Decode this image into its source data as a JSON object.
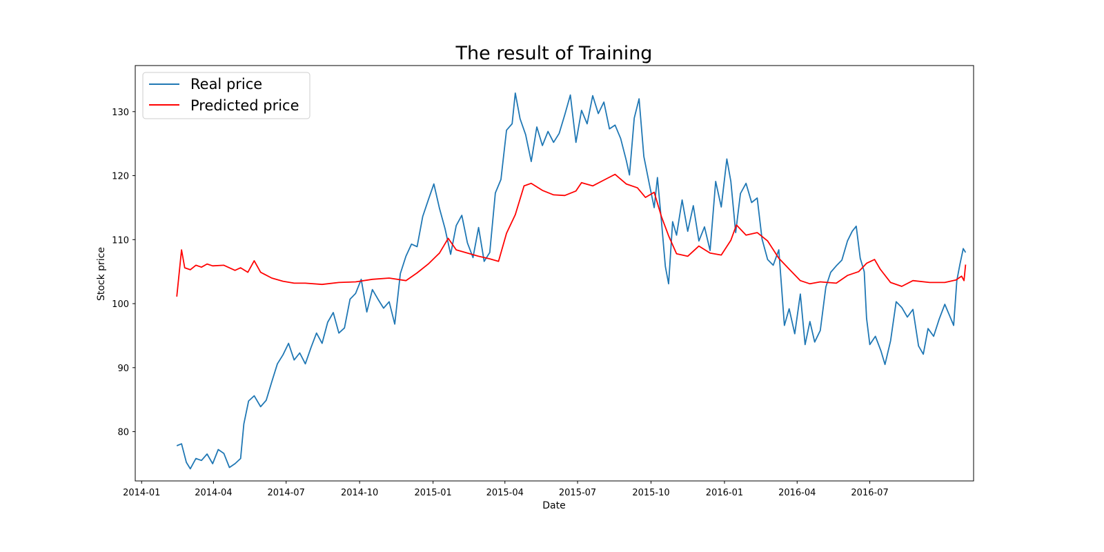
{
  "chart_data": {
    "type": "line",
    "title": "The result of Training",
    "xlabel": "Date",
    "ylabel": "Stock price",
    "x_ticks": [
      "2014-01",
      "2014-04",
      "2014-07",
      "2014-10",
      "2015-01",
      "2015-04",
      "2015-07",
      "2015-10",
      "2016-01",
      "2016-04",
      "2016-07"
    ],
    "y_ticks": [
      80,
      90,
      100,
      110,
      120,
      130
    ],
    "xlim": [
      "2013-12-24",
      "2016-11-08"
    ],
    "ylim": [
      72.3,
      137.2
    ],
    "legend_position": "top-left",
    "grid": false,
    "series": [
      {
        "name": "Real price",
        "color": "#1f77b4",
        "points": [
          [
            "2014-02-14",
            77.8
          ],
          [
            "2014-02-20",
            78.1
          ],
          [
            "2014-02-26",
            75.2
          ],
          [
            "2014-03-03",
            74.2
          ],
          [
            "2014-03-10",
            75.8
          ],
          [
            "2014-03-17",
            75.5
          ],
          [
            "2014-03-24",
            76.5
          ],
          [
            "2014-03-31",
            75.0
          ],
          [
            "2014-04-07",
            77.2
          ],
          [
            "2014-04-14",
            76.6
          ],
          [
            "2014-04-21",
            74.4
          ],
          [
            "2014-04-28",
            75.0
          ],
          [
            "2014-05-05",
            75.8
          ],
          [
            "2014-05-09",
            81.2
          ],
          [
            "2014-05-15",
            84.8
          ],
          [
            "2014-05-22",
            85.6
          ],
          [
            "2014-05-30",
            83.9
          ],
          [
            "2014-06-06",
            84.9
          ],
          [
            "2014-06-13",
            87.8
          ],
          [
            "2014-06-20",
            90.6
          ],
          [
            "2014-06-27",
            92.0
          ],
          [
            "2014-07-04",
            93.8
          ],
          [
            "2014-07-11",
            91.2
          ],
          [
            "2014-07-18",
            92.3
          ],
          [
            "2014-07-25",
            90.6
          ],
          [
            "2014-08-01",
            93.1
          ],
          [
            "2014-08-08",
            95.4
          ],
          [
            "2014-08-15",
            93.8
          ],
          [
            "2014-08-22",
            97.1
          ],
          [
            "2014-08-29",
            98.6
          ],
          [
            "2014-09-05",
            95.4
          ],
          [
            "2014-09-12",
            96.2
          ],
          [
            "2014-09-19",
            100.7
          ],
          [
            "2014-09-26",
            101.6
          ],
          [
            "2014-10-03",
            103.8
          ],
          [
            "2014-10-10",
            98.7
          ],
          [
            "2014-10-17",
            102.2
          ],
          [
            "2014-10-24",
            100.7
          ],
          [
            "2014-10-31",
            99.3
          ],
          [
            "2014-11-07",
            100.3
          ],
          [
            "2014-11-14",
            96.8
          ],
          [
            "2014-11-21",
            104.7
          ],
          [
            "2014-11-28",
            107.4
          ],
          [
            "2014-12-05",
            109.3
          ],
          [
            "2014-12-12",
            108.9
          ],
          [
            "2014-12-19",
            113.6
          ],
          [
            "2014-12-26",
            116.2
          ],
          [
            "2015-01-02",
            118.7
          ],
          [
            "2015-01-09",
            114.9
          ],
          [
            "2015-01-16",
            111.7
          ],
          [
            "2015-01-23",
            107.7
          ],
          [
            "2015-01-30",
            112.2
          ],
          [
            "2015-02-06",
            113.8
          ],
          [
            "2015-02-13",
            109.5
          ],
          [
            "2015-02-20",
            107.2
          ],
          [
            "2015-02-27",
            111.9
          ],
          [
            "2015-03-06",
            106.6
          ],
          [
            "2015-03-13",
            108.0
          ],
          [
            "2015-03-20",
            117.3
          ],
          [
            "2015-03-27",
            119.4
          ],
          [
            "2015-04-03",
            127.1
          ],
          [
            "2015-04-10",
            128.1
          ],
          [
            "2015-04-14",
            132.9
          ],
          [
            "2015-04-20",
            128.9
          ],
          [
            "2015-04-27",
            126.4
          ],
          [
            "2015-05-04",
            122.2
          ],
          [
            "2015-05-11",
            127.6
          ],
          [
            "2015-05-18",
            124.7
          ],
          [
            "2015-05-25",
            126.9
          ],
          [
            "2015-06-01",
            125.2
          ],
          [
            "2015-06-08",
            126.6
          ],
          [
            "2015-06-15",
            129.5
          ],
          [
            "2015-06-22",
            132.6
          ],
          [
            "2015-06-29",
            125.2
          ],
          [
            "2015-07-06",
            130.2
          ],
          [
            "2015-07-13",
            128.1
          ],
          [
            "2015-07-20",
            132.5
          ],
          [
            "2015-07-27",
            129.7
          ],
          [
            "2015-08-03",
            131.5
          ],
          [
            "2015-08-10",
            127.3
          ],
          [
            "2015-08-17",
            127.9
          ],
          [
            "2015-08-24",
            125.8
          ],
          [
            "2015-08-31",
            122.4
          ],
          [
            "2015-09-04",
            120.1
          ],
          [
            "2015-09-10",
            129.0
          ],
          [
            "2015-09-16",
            132.0
          ],
          [
            "2015-09-22",
            123.0
          ],
          [
            "2015-09-29",
            118.6
          ],
          [
            "2015-10-05",
            115.0
          ],
          [
            "2015-10-09",
            119.7
          ],
          [
            "2015-10-14",
            112.9
          ],
          [
            "2015-10-19",
            105.8
          ],
          [
            "2015-10-23",
            103.1
          ],
          [
            "2015-10-28",
            112.8
          ],
          [
            "2015-11-02",
            110.7
          ],
          [
            "2015-11-09",
            116.2
          ],
          [
            "2015-11-16",
            111.3
          ],
          [
            "2015-11-23",
            115.3
          ],
          [
            "2015-11-30",
            109.8
          ],
          [
            "2015-12-07",
            112.0
          ],
          [
            "2015-12-14",
            108.3
          ],
          [
            "2015-12-21",
            119.1
          ],
          [
            "2015-12-28",
            115.1
          ],
          [
            "2016-01-04",
            122.6
          ],
          [
            "2016-01-09",
            119.1
          ],
          [
            "2016-01-15",
            111.1
          ],
          [
            "2016-01-21",
            117.2
          ],
          [
            "2016-01-28",
            118.8
          ],
          [
            "2016-02-04",
            115.8
          ],
          [
            "2016-02-11",
            116.5
          ],
          [
            "2016-02-17",
            110.1
          ],
          [
            "2016-02-24",
            106.9
          ],
          [
            "2016-03-02",
            106.0
          ],
          [
            "2016-03-09",
            108.4
          ],
          [
            "2016-03-16",
            96.6
          ],
          [
            "2016-03-22",
            99.2
          ],
          [
            "2016-03-29",
            95.3
          ],
          [
            "2016-04-05",
            101.5
          ],
          [
            "2016-04-11",
            93.6
          ],
          [
            "2016-04-17",
            97.2
          ],
          [
            "2016-04-23",
            94.0
          ],
          [
            "2016-04-30",
            95.8
          ],
          [
            "2016-05-07",
            102.6
          ],
          [
            "2016-05-13",
            104.9
          ],
          [
            "2016-05-20",
            105.9
          ],
          [
            "2016-05-27",
            106.8
          ],
          [
            "2016-06-03",
            109.8
          ],
          [
            "2016-06-09",
            111.3
          ],
          [
            "2016-06-14",
            112.1
          ],
          [
            "2016-06-19",
            107.1
          ],
          [
            "2016-06-24",
            105.0
          ],
          [
            "2016-06-27",
            97.7
          ],
          [
            "2016-07-01",
            93.6
          ],
          [
            "2016-07-08",
            94.9
          ],
          [
            "2016-07-15",
            92.6
          ],
          [
            "2016-07-20",
            90.5
          ],
          [
            "2016-07-27",
            94.2
          ],
          [
            "2016-08-03",
            100.3
          ],
          [
            "2016-08-10",
            99.4
          ],
          [
            "2016-08-17",
            97.9
          ],
          [
            "2016-08-24",
            99.1
          ],
          [
            "2016-08-31",
            93.4
          ],
          [
            "2016-09-06",
            92.1
          ],
          [
            "2016-09-12",
            96.1
          ],
          [
            "2016-09-19",
            94.9
          ],
          [
            "2016-09-26",
            97.6
          ],
          [
            "2016-10-03",
            99.9
          ],
          [
            "2016-10-09",
            98.1
          ],
          [
            "2016-10-14",
            96.6
          ],
          [
            "2016-10-18",
            103.6
          ],
          [
            "2016-10-22",
            106.2
          ],
          [
            "2016-10-26",
            108.6
          ],
          [
            "2016-10-29",
            108.0
          ]
        ]
      },
      {
        "name": "Predicted price",
        "color": "#ff0000",
        "points": [
          [
            "2014-02-14",
            101.1
          ],
          [
            "2014-02-20",
            108.4
          ],
          [
            "2014-02-24",
            105.6
          ],
          [
            "2014-03-03",
            105.3
          ],
          [
            "2014-03-10",
            106.0
          ],
          [
            "2014-03-17",
            105.7
          ],
          [
            "2014-03-24",
            106.2
          ],
          [
            "2014-03-31",
            105.9
          ],
          [
            "2014-04-14",
            106.0
          ],
          [
            "2014-04-28",
            105.2
          ],
          [
            "2014-05-05",
            105.6
          ],
          [
            "2014-05-14",
            104.9
          ],
          [
            "2014-05-22",
            106.7
          ],
          [
            "2014-05-30",
            104.9
          ],
          [
            "2014-06-13",
            104.0
          ],
          [
            "2014-06-27",
            103.5
          ],
          [
            "2014-07-11",
            103.2
          ],
          [
            "2014-07-25",
            103.2
          ],
          [
            "2014-08-15",
            103.0
          ],
          [
            "2014-09-05",
            103.3
          ],
          [
            "2014-09-26",
            103.4
          ],
          [
            "2014-10-17",
            103.8
          ],
          [
            "2014-11-07",
            104.0
          ],
          [
            "2014-11-28",
            103.6
          ],
          [
            "2014-12-12",
            104.8
          ],
          [
            "2014-12-26",
            106.2
          ],
          [
            "2015-01-09",
            107.9
          ],
          [
            "2015-01-20",
            110.2
          ],
          [
            "2015-01-30",
            108.4
          ],
          [
            "2015-02-13",
            107.9
          ],
          [
            "2015-02-27",
            107.4
          ],
          [
            "2015-03-13",
            107.0
          ],
          [
            "2015-03-24",
            106.6
          ],
          [
            "2015-04-03",
            111.0
          ],
          [
            "2015-04-14",
            113.9
          ],
          [
            "2015-04-25",
            118.4
          ],
          [
            "2015-05-04",
            118.8
          ],
          [
            "2015-05-18",
            117.7
          ],
          [
            "2015-06-01",
            117.0
          ],
          [
            "2015-06-15",
            116.9
          ],
          [
            "2015-06-29",
            117.6
          ],
          [
            "2015-07-06",
            118.9
          ],
          [
            "2015-07-20",
            118.4
          ],
          [
            "2015-08-03",
            119.3
          ],
          [
            "2015-08-17",
            120.2
          ],
          [
            "2015-08-31",
            118.7
          ],
          [
            "2015-09-14",
            118.1
          ],
          [
            "2015-09-24",
            116.6
          ],
          [
            "2015-10-05",
            117.4
          ],
          [
            "2015-10-14",
            113.6
          ],
          [
            "2015-10-23",
            110.6
          ],
          [
            "2015-11-02",
            107.8
          ],
          [
            "2015-11-16",
            107.4
          ],
          [
            "2015-11-30",
            109.0
          ],
          [
            "2015-12-14",
            107.9
          ],
          [
            "2015-12-28",
            107.6
          ],
          [
            "2016-01-09",
            109.9
          ],
          [
            "2016-01-16",
            112.3
          ],
          [
            "2016-01-28",
            110.7
          ],
          [
            "2016-02-11",
            111.1
          ],
          [
            "2016-02-24",
            109.8
          ],
          [
            "2016-03-09",
            107.1
          ],
          [
            "2016-03-22",
            105.4
          ],
          [
            "2016-04-05",
            103.6
          ],
          [
            "2016-04-17",
            103.1
          ],
          [
            "2016-04-30",
            103.4
          ],
          [
            "2016-05-20",
            103.2
          ],
          [
            "2016-06-03",
            104.4
          ],
          [
            "2016-06-17",
            105.0
          ],
          [
            "2016-06-27",
            106.3
          ],
          [
            "2016-07-07",
            106.9
          ],
          [
            "2016-07-14",
            105.4
          ],
          [
            "2016-07-27",
            103.3
          ],
          [
            "2016-08-10",
            102.7
          ],
          [
            "2016-08-24",
            103.6
          ],
          [
            "2016-09-14",
            103.3
          ],
          [
            "2016-10-03",
            103.3
          ],
          [
            "2016-10-17",
            103.7
          ],
          [
            "2016-10-24",
            104.3
          ],
          [
            "2016-10-27",
            103.6
          ],
          [
            "2016-10-29",
            106.1
          ]
        ]
      }
    ]
  }
}
